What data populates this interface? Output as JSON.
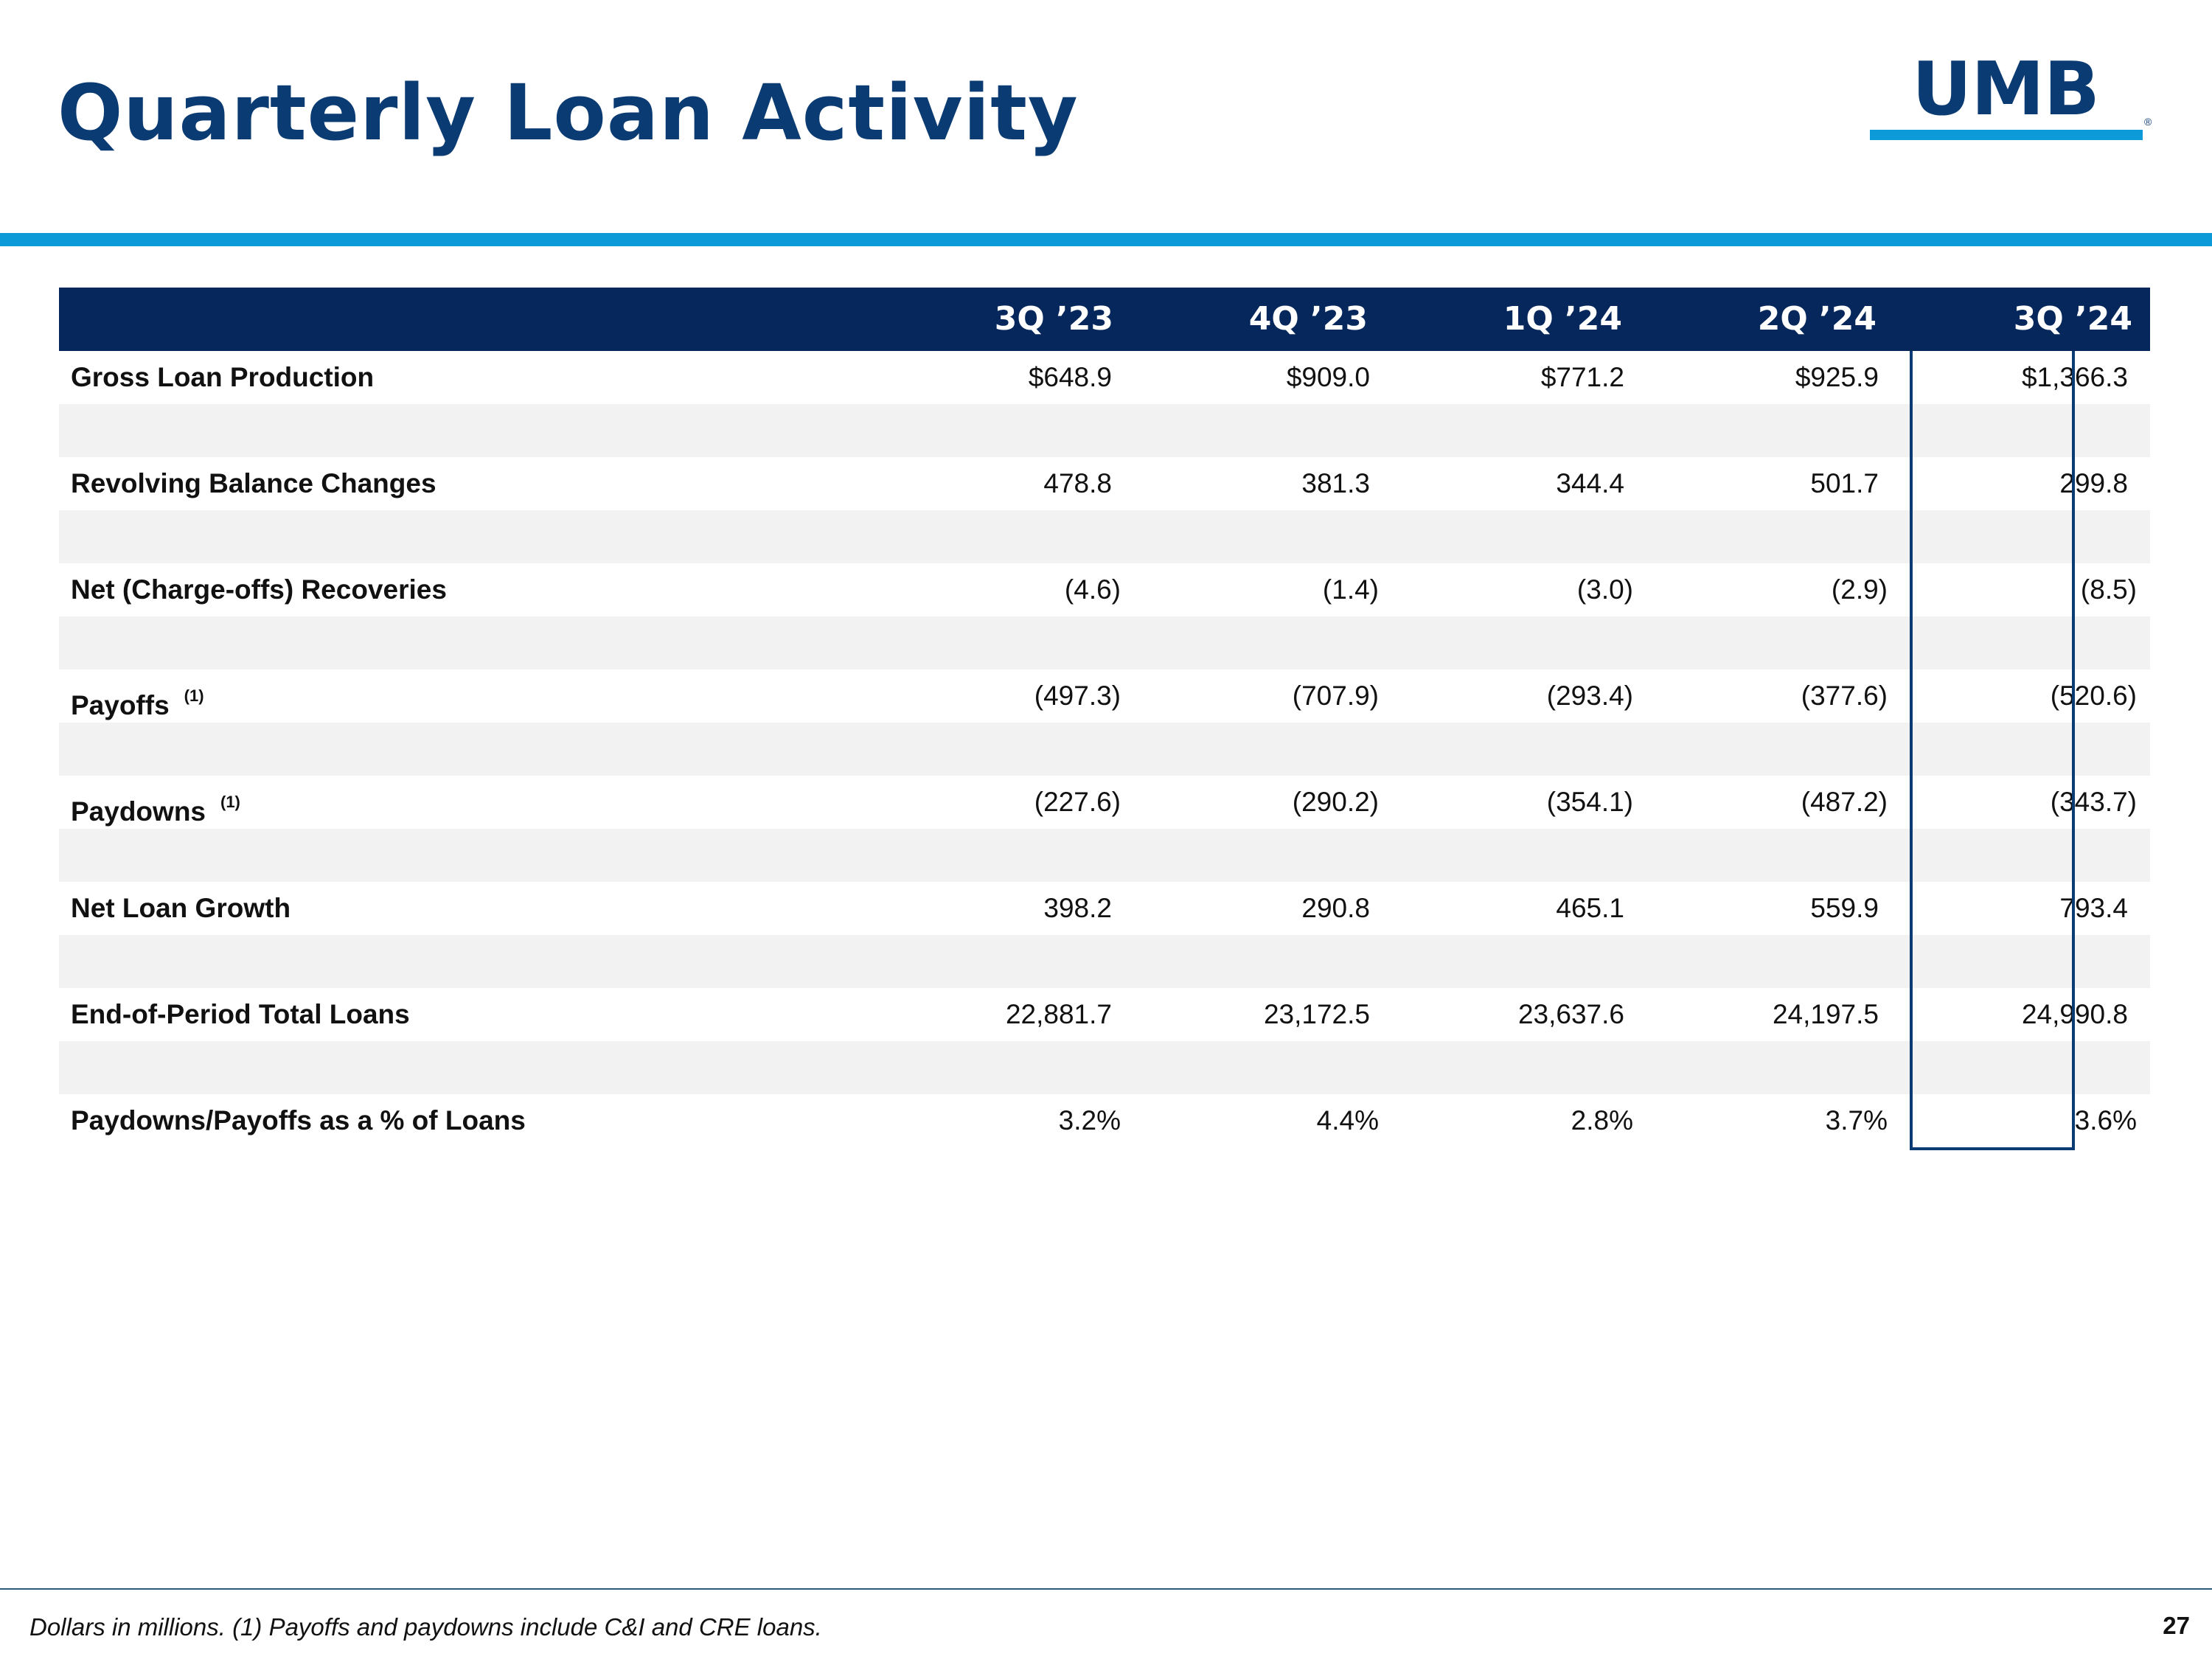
{
  "slide": {
    "title": "Quarterly Loan Activity",
    "logo_text": "UMB",
    "logo_mark": "®",
    "footnote": "Dollars in millions. (1) Payoffs and paydowns include C&I and CRE loans.",
    "page_number": "27",
    "colors": {
      "title": "#0b3b73",
      "accent": "#0c9ad8",
      "header_bg": "#06275b",
      "band": "#f2f2f2"
    }
  },
  "table": {
    "columns": [
      "3Q ’23",
      "4Q ’23",
      "1Q ’24",
      "2Q ’24",
      "3Q ’24"
    ],
    "highlighted_column": "3Q ’24",
    "rows": [
      {
        "label": "Gross Loan Production",
        "note": "",
        "values": [
          "$648.9",
          "$909.0",
          "$771.2",
          "$925.9",
          "$1,366.3"
        ]
      },
      {
        "label": "Revolving Balance Changes",
        "note": "",
        "values": [
          "478.8",
          "381.3",
          "344.4",
          "501.7",
          "299.8"
        ]
      },
      {
        "label": "Net (Charge-offs) Recoveries",
        "note": "",
        "values": [
          "(4.6)",
          "(1.4)",
          "(3.0)",
          "(2.9)",
          "(8.5)"
        ]
      },
      {
        "label": "Payoffs",
        "note": "(1)",
        "values": [
          "(497.3)",
          "(707.9)",
          "(293.4)",
          "(377.6)",
          "(520.6)"
        ]
      },
      {
        "label": "Paydowns",
        "note": "(1)",
        "values": [
          "(227.6)",
          "(290.2)",
          "(354.1)",
          "(487.2)",
          "(343.7)"
        ]
      },
      {
        "label": "Net Loan Growth",
        "note": "",
        "values": [
          "398.2",
          "290.8",
          "465.1",
          "559.9",
          "793.4"
        ]
      },
      {
        "label": "End-of-Period Total Loans",
        "note": "",
        "values": [
          "22,881.7",
          "23,172.5",
          "23,637.6",
          "24,197.5",
          "24,990.8"
        ]
      },
      {
        "label": "Paydowns/Payoffs as a % of Loans",
        "note": "",
        "values": [
          "3.2%",
          "4.4%",
          "2.8%",
          "3.7%",
          "3.6%"
        ]
      }
    ]
  }
}
